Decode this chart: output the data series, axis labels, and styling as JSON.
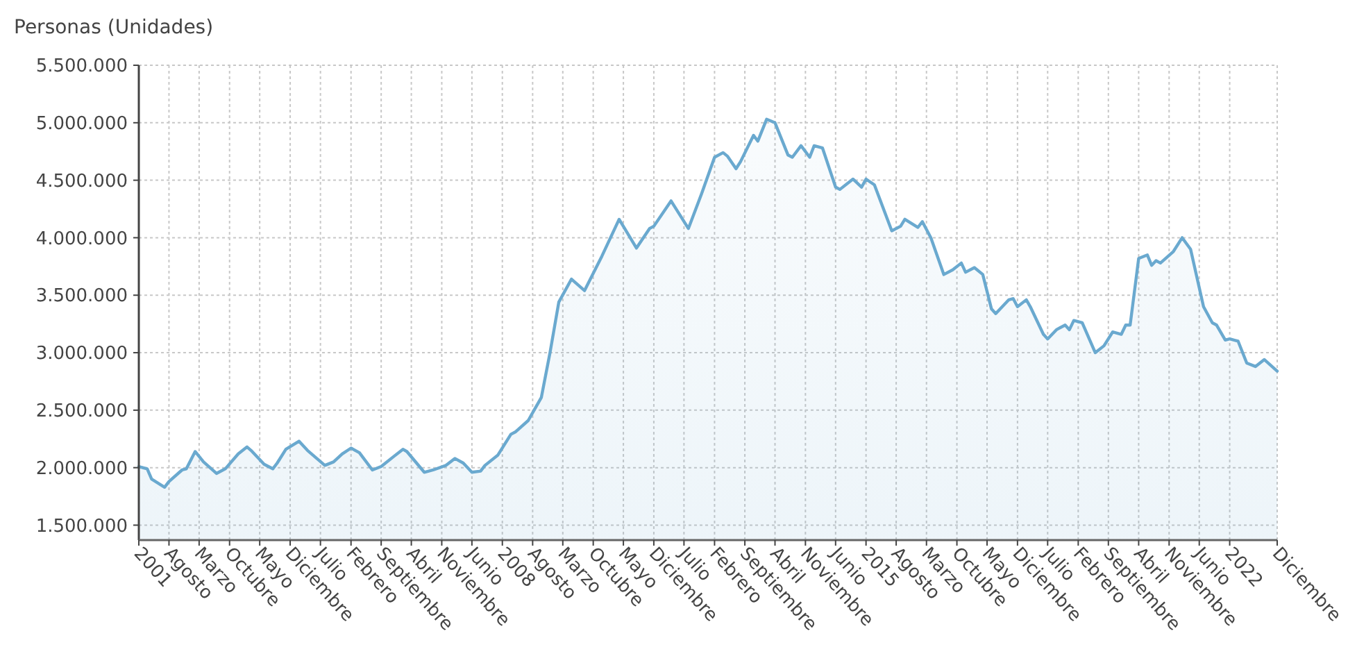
{
  "chart_data": {
    "type": "area",
    "ylabel": "Personas (Unidades)",
    "grid": true,
    "x": [
      "2001-01",
      "2001-03",
      "2001-04",
      "2001-07",
      "2001-08",
      "2001-11",
      "2001-12",
      "2002-02",
      "2002-04",
      "2002-07",
      "2002-09",
      "2002-12",
      "2003-02",
      "2003-03",
      "2003-06",
      "2003-08",
      "2003-09",
      "2003-11",
      "2004-02",
      "2004-04",
      "2004-08",
      "2004-10",
      "2004-12",
      "2005-02",
      "2005-04",
      "2005-07",
      "2005-09",
      "2005-12",
      "2006-02",
      "2006-03",
      "2006-07",
      "2006-09",
      "2006-12",
      "2007-02",
      "2007-04",
      "2007-06",
      "2007-08",
      "2007-09",
      "2007-12",
      "2008-03",
      "2008-04",
      "2008-07",
      "2008-10",
      "2008-12",
      "2009-02",
      "2009-05",
      "2009-08",
      "2009-12",
      "2010-04",
      "2010-08",
      "2010-11",
      "2010-12",
      "2011-04",
      "2011-08",
      "2011-11",
      "2012-02",
      "2012-04",
      "2012-05",
      "2012-07",
      "2012-08",
      "2012-11",
      "2012-12",
      "2013-02",
      "2013-04",
      "2013-07",
      "2013-08",
      "2013-10",
      "2013-12",
      "2014-01",
      "2014-03",
      "2014-06",
      "2014-07",
      "2014-10",
      "2014-12",
      "2015-01",
      "2015-03",
      "2015-07",
      "2015-09",
      "2015-10",
      "2016-01",
      "2016-02",
      "2016-04",
      "2016-07",
      "2016-09",
      "2016-11",
      "2016-12",
      "2017-02",
      "2017-04",
      "2017-06",
      "2017-07",
      "2017-10",
      "2017-11",
      "2017-12",
      "2018-02",
      "2018-03",
      "2018-06",
      "2018-07",
      "2018-09",
      "2018-11",
      "2018-12",
      "2019-01",
      "2019-03",
      "2019-06",
      "2019-08",
      "2019-10",
      "2019-12",
      "2020-01",
      "2020-02",
      "2020-04",
      "2020-06",
      "2020-07",
      "2020-08",
      "2020-09",
      "2020-12",
      "2021-02",
      "2021-04",
      "2021-07",
      "2021-09",
      "2021-10",
      "2021-12",
      "2022-01",
      "2022-03",
      "2022-05",
      "2022-07",
      "2022-09",
      "2022-12"
    ],
    "series": [
      {
        "color": "#6aa9cf",
        "values": [
          2010000,
          1990000,
          1900000,
          1830000,
          1880000,
          1980000,
          1990000,
          2140000,
          2050000,
          1950000,
          1990000,
          2120000,
          2180000,
          2150000,
          2030000,
          1990000,
          2040000,
          2160000,
          2230000,
          2150000,
          2020000,
          2050000,
          2120000,
          2170000,
          2130000,
          1980000,
          2010000,
          2100000,
          2160000,
          2140000,
          1960000,
          1980000,
          2020000,
          2080000,
          2040000,
          1960000,
          1970000,
          2020000,
          2110000,
          2290000,
          2310000,
          2410000,
          2610000,
          3000000,
          3440000,
          3640000,
          3540000,
          3840000,
          4160000,
          3910000,
          4080000,
          4100000,
          4320000,
          4080000,
          4380000,
          4700000,
          4740000,
          4710000,
          4600000,
          4660000,
          4890000,
          4840000,
          5030000,
          5000000,
          4720000,
          4700000,
          4800000,
          4700000,
          4800000,
          4780000,
          4440000,
          4420000,
          4510000,
          4440000,
          4510000,
          4460000,
          4060000,
          4100000,
          4160000,
          4090000,
          4140000,
          4000000,
          3680000,
          3720000,
          3780000,
          3700000,
          3740000,
          3680000,
          3380000,
          3340000,
          3460000,
          3470000,
          3400000,
          3460000,
          3400000,
          3160000,
          3120000,
          3200000,
          3240000,
          3200000,
          3280000,
          3260000,
          3000000,
          3060000,
          3180000,
          3160000,
          3240000,
          3240000,
          3820000,
          3850000,
          3760000,
          3800000,
          3780000,
          3880000,
          4000000,
          3900000,
          3400000,
          3260000,
          3240000,
          3110000,
          3120000,
          3100000,
          2910000,
          2880000,
          2940000,
          2840000
        ]
      }
    ],
    "ylim": [
      1370000,
      5500000
    ],
    "yticks": [
      {
        "value": 1500000,
        "label": "1.500.000"
      },
      {
        "value": 2000000,
        "label": "2.000.000"
      },
      {
        "value": 2500000,
        "label": "2.500.000"
      },
      {
        "value": 3000000,
        "label": "3.000.000"
      },
      {
        "value": 3500000,
        "label": "3.500.000"
      },
      {
        "value": 4000000,
        "label": "4.000.000"
      },
      {
        "value": 4500000,
        "label": "4.500.000"
      },
      {
        "value": 5000000,
        "label": "5.000.000"
      },
      {
        "value": 5500000,
        "label": "5.500.000"
      }
    ],
    "xlim": [
      "2001-01",
      "2022-12"
    ],
    "xticks": [
      {
        "value": "2001-01",
        "label": "2001"
      },
      {
        "value": "2001-08",
        "label": "Agosto"
      },
      {
        "value": "2002-03",
        "label": "Marzo"
      },
      {
        "value": "2002-10",
        "label": "Octubre"
      },
      {
        "value": "2003-05",
        "label": "Mayo"
      },
      {
        "value": "2003-12",
        "label": "Diciembre"
      },
      {
        "value": "2004-07",
        "label": "Julio"
      },
      {
        "value": "2005-02",
        "label": "Febrero"
      },
      {
        "value": "2005-09",
        "label": "Septiembre"
      },
      {
        "value": "2006-04",
        "label": "Abril"
      },
      {
        "value": "2006-11",
        "label": "Noviembre"
      },
      {
        "value": "2007-06",
        "label": "Junio"
      },
      {
        "value": "2008-01",
        "label": "2008"
      },
      {
        "value": "2008-08",
        "label": "Agosto"
      },
      {
        "value": "2009-03",
        "label": "Marzo"
      },
      {
        "value": "2009-10",
        "label": "Octubre"
      },
      {
        "value": "2010-05",
        "label": "Mayo"
      },
      {
        "value": "2010-12",
        "label": "Diciembre"
      },
      {
        "value": "2011-07",
        "label": "Julio"
      },
      {
        "value": "2012-02",
        "label": "Febrero"
      },
      {
        "value": "2012-09",
        "label": "Septiembre"
      },
      {
        "value": "2013-04",
        "label": "Abril"
      },
      {
        "value": "2013-11",
        "label": "Noviembre"
      },
      {
        "value": "2014-06",
        "label": "Junio"
      },
      {
        "value": "2015-01",
        "label": "2015"
      },
      {
        "value": "2015-08",
        "label": "Agosto"
      },
      {
        "value": "2016-03",
        "label": "Marzo"
      },
      {
        "value": "2016-10",
        "label": "Octubre"
      },
      {
        "value": "2017-05",
        "label": "Mayo"
      },
      {
        "value": "2017-12",
        "label": "Diciembre"
      },
      {
        "value": "2018-07",
        "label": "Julio"
      },
      {
        "value": "2019-02",
        "label": "Febrero"
      },
      {
        "value": "2019-09",
        "label": "Septiembre"
      },
      {
        "value": "2020-04",
        "label": "Abril"
      },
      {
        "value": "2020-11",
        "label": "Noviembre"
      },
      {
        "value": "2021-06",
        "label": "Junio"
      },
      {
        "value": "2022-01",
        "label": "2022"
      },
      {
        "value": "2022-12",
        "label": "Diciembre"
      }
    ]
  }
}
